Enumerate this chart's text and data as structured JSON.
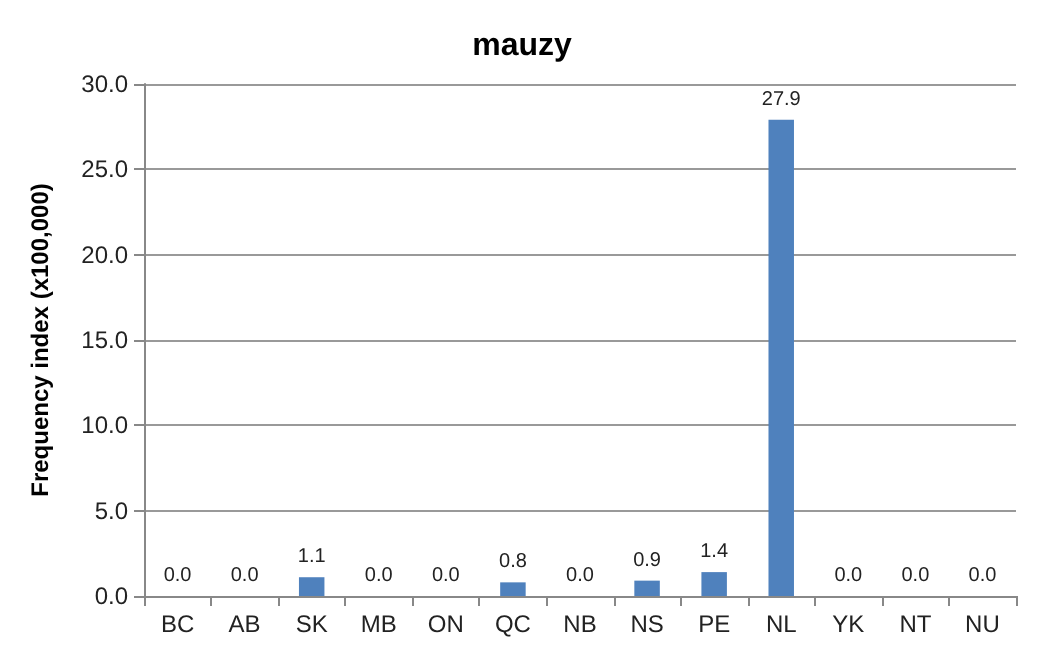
{
  "chart_data": {
    "type": "bar",
    "title": "mauzy",
    "ylabel": "Frequency index (x100,000)",
    "categories": [
      "BC",
      "AB",
      "SK",
      "MB",
      "ON",
      "QC",
      "NB",
      "NS",
      "PE",
      "NL",
      "YK",
      "NT",
      "NU"
    ],
    "values": [
      0.0,
      0.0,
      1.1,
      0.0,
      0.0,
      0.8,
      0.0,
      0.9,
      1.4,
      27.9,
      0.0,
      0.0,
      0.0
    ],
    "value_labels": [
      "0.0",
      "0.0",
      "1.1",
      "0.0",
      "0.0",
      "0.8",
      "0.0",
      "0.9",
      "1.4",
      "27.9",
      "0.0",
      "0.0",
      "0.0"
    ],
    "color": "#4f81bd",
    "ylim": [
      0,
      30
    ],
    "yticks": [
      {
        "value": 0,
        "label": "0.0"
      },
      {
        "value": 5,
        "label": "5.0"
      },
      {
        "value": 10,
        "label": "10.0"
      },
      {
        "value": 15,
        "label": "15.0"
      },
      {
        "value": 20,
        "label": "20.0"
      },
      {
        "value": 25,
        "label": "25.0"
      },
      {
        "value": 30,
        "label": "30.0"
      }
    ],
    "grid": true
  }
}
